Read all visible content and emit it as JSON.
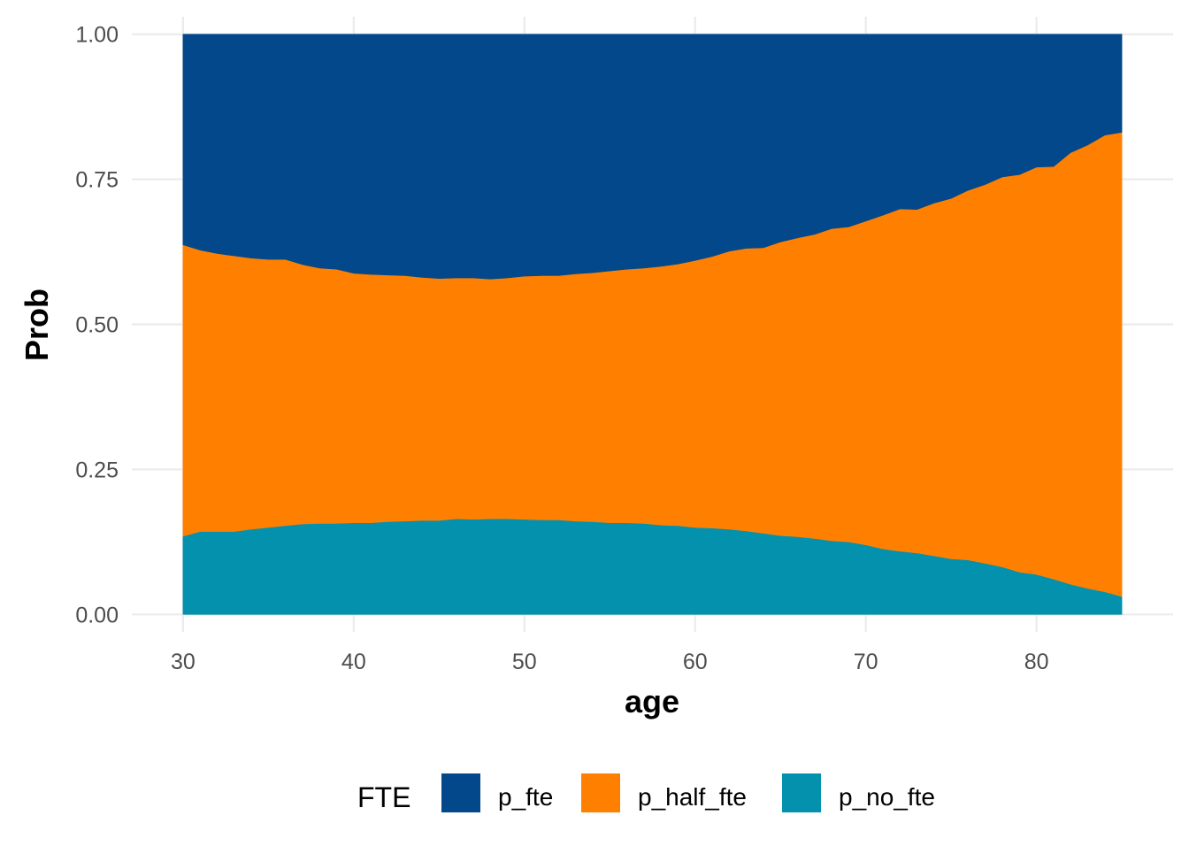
{
  "chart_data": {
    "type": "area",
    "stacked": true,
    "xlabel": "age",
    "ylabel": "Prob",
    "xlim": [
      27,
      88
    ],
    "ylim": [
      -0.03,
      1.03
    ],
    "x_ticks": [
      30,
      40,
      50,
      60,
      70,
      80
    ],
    "y_ticks": [
      0,
      0.25,
      0.5,
      0.75,
      1.0
    ],
    "x_tick_labels": [
      "30",
      "40",
      "50",
      "60",
      "70",
      "80"
    ],
    "y_tick_labels": [
      "0.00",
      "0.25",
      "0.50",
      "0.75",
      "1.00"
    ],
    "grid": true,
    "legend": {
      "title": "FTE",
      "position": "bottom",
      "entries": [
        "p_fte",
        "p_half_fte",
        "p_no_fte"
      ]
    },
    "x": [
      30,
      31,
      32,
      33,
      34,
      35,
      36,
      37,
      38,
      39,
      40,
      41,
      42,
      43,
      44,
      45,
      46,
      47,
      48,
      49,
      50,
      51,
      52,
      53,
      54,
      55,
      56,
      57,
      58,
      59,
      60,
      61,
      62,
      63,
      64,
      65,
      66,
      67,
      68,
      69,
      70,
      71,
      72,
      73,
      74,
      75,
      76,
      77,
      78,
      79,
      80,
      81,
      82,
      83,
      84,
      85
    ],
    "series": [
      {
        "name": "p_no_fte",
        "color": "#0391ae",
        "values": [
          0.135,
          0.143,
          0.143,
          0.143,
          0.147,
          0.15,
          0.153,
          0.156,
          0.157,
          0.157,
          0.158,
          0.158,
          0.16,
          0.161,
          0.162,
          0.162,
          0.165,
          0.164,
          0.165,
          0.165,
          0.164,
          0.163,
          0.163,
          0.161,
          0.16,
          0.158,
          0.158,
          0.157,
          0.154,
          0.153,
          0.15,
          0.149,
          0.147,
          0.144,
          0.14,
          0.136,
          0.134,
          0.131,
          0.127,
          0.125,
          0.12,
          0.113,
          0.109,
          0.106,
          0.101,
          0.096,
          0.094,
          0.088,
          0.082,
          0.073,
          0.069,
          0.061,
          0.052,
          0.045,
          0.039,
          0.031
        ]
      },
      {
        "name": "p_half_fte",
        "color": "#ff8000",
        "values": [
          0.502,
          0.485,
          0.479,
          0.475,
          0.467,
          0.462,
          0.459,
          0.447,
          0.44,
          0.438,
          0.43,
          0.428,
          0.425,
          0.423,
          0.419,
          0.417,
          0.415,
          0.416,
          0.413,
          0.415,
          0.419,
          0.421,
          0.421,
          0.426,
          0.429,
          0.434,
          0.437,
          0.44,
          0.446,
          0.451,
          0.46,
          0.468,
          0.479,
          0.487,
          0.492,
          0.506,
          0.515,
          0.524,
          0.538,
          0.543,
          0.558,
          0.575,
          0.59,
          0.592,
          0.608,
          0.621,
          0.637,
          0.653,
          0.672,
          0.685,
          0.702,
          0.711,
          0.744,
          0.764,
          0.787,
          0.8
        ]
      },
      {
        "name": "p_fte",
        "color": "#03488a",
        "values": [
          0.363,
          0.372,
          0.378,
          0.382,
          0.386,
          0.388,
          0.388,
          0.397,
          0.403,
          0.405,
          0.412,
          0.414,
          0.415,
          0.416,
          0.419,
          0.421,
          0.42,
          0.42,
          0.422,
          0.42,
          0.417,
          0.416,
          0.416,
          0.413,
          0.411,
          0.408,
          0.405,
          0.403,
          0.4,
          0.396,
          0.39,
          0.383,
          0.374,
          0.369,
          0.368,
          0.358,
          0.351,
          0.345,
          0.335,
          0.332,
          0.322,
          0.312,
          0.301,
          0.302,
          0.291,
          0.283,
          0.269,
          0.259,
          0.246,
          0.242,
          0.229,
          0.228,
          0.204,
          0.191,
          0.174,
          0.169
        ]
      }
    ]
  }
}
